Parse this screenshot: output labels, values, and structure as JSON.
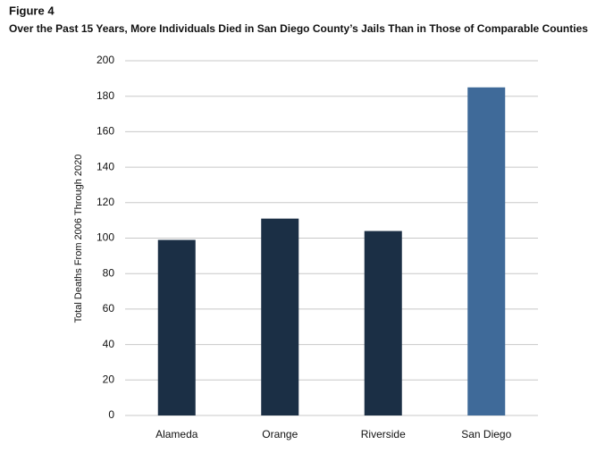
{
  "chart_data": {
    "type": "bar",
    "label": "Figure 4",
    "title": "Over the Past 15 Years, More Individuals Died in San Diego County’s Jails Than in Those of Comparable Counties",
    "ylabel": "Total Deaths From 2006 Through 2020",
    "categories": [
      "Alameda",
      "Orange",
      "Riverside",
      "San Diego"
    ],
    "values": [
      99,
      111,
      104,
      185
    ],
    "colors": [
      "#1b2f45",
      "#1b2f45",
      "#1b2f45",
      "#3f6a99"
    ],
    "ylim": [
      0,
      200
    ],
    "yticks": [
      0,
      20,
      40,
      60,
      80,
      100,
      120,
      140,
      160,
      180,
      200
    ],
    "grid": true
  }
}
